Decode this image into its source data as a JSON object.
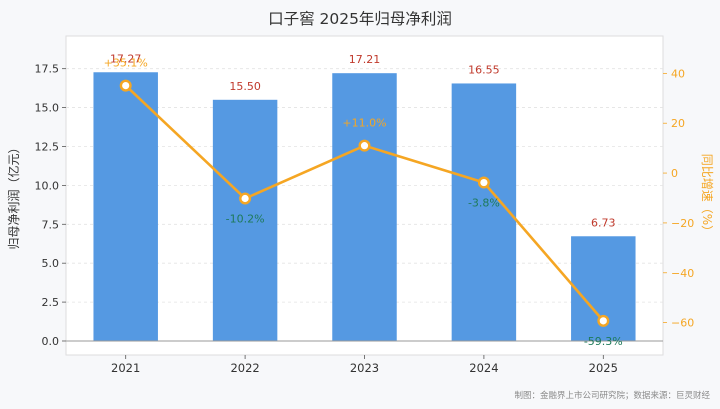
{
  "chart_data": {
    "type": "bar",
    "title": "口子窖 2025年归母净利润",
    "categories": [
      "2021",
      "2022",
      "2023",
      "2024",
      "2025"
    ],
    "series": [
      {
        "name": "归母净利润",
        "axis": "left",
        "type": "bar",
        "values": [
          17.27,
          15.5,
          17.21,
          16.55,
          6.73
        ],
        "labels": [
          "17.27",
          "15.50",
          "17.21",
          "16.55",
          "6.73"
        ],
        "color": "#5599e2",
        "label_color": "#c0392b"
      },
      {
        "name": "同比增速",
        "axis": "right",
        "type": "line",
        "values": [
          35.1,
          -10.2,
          11.0,
          -3.8,
          -59.3
        ],
        "labels": [
          "+35.1%",
          "-10.2%",
          "+11.0%",
          "-3.8%",
          "-59.3%"
        ],
        "color": "#f5a623",
        "label_color_positive": "#f5a623",
        "label_color_negative": "#1e7a5a"
      }
    ],
    "ylabel": "归母净利润（亿元）",
    "ylabel_right": "同比增速（%）",
    "ylim": [
      -0.9,
      19.6
    ],
    "yticks": [
      0.0,
      2.5,
      5.0,
      7.5,
      10.0,
      12.5,
      15.0,
      17.5
    ],
    "ytick_labels": [
      "0.0",
      "2.5",
      "5.0",
      "7.5",
      "10.0",
      "12.5",
      "15.0",
      "17.5"
    ],
    "ylim_right": [
      -73,
      55
    ],
    "yticks_right": [
      -60,
      -40,
      -20,
      0,
      20,
      40
    ],
    "ytick_labels_right": [
      "−60",
      "−40",
      "−20",
      "0",
      "20",
      "40"
    ],
    "grid": true,
    "footer": "制图：金融界上市公司研究院；数据来源：巨灵财经"
  }
}
